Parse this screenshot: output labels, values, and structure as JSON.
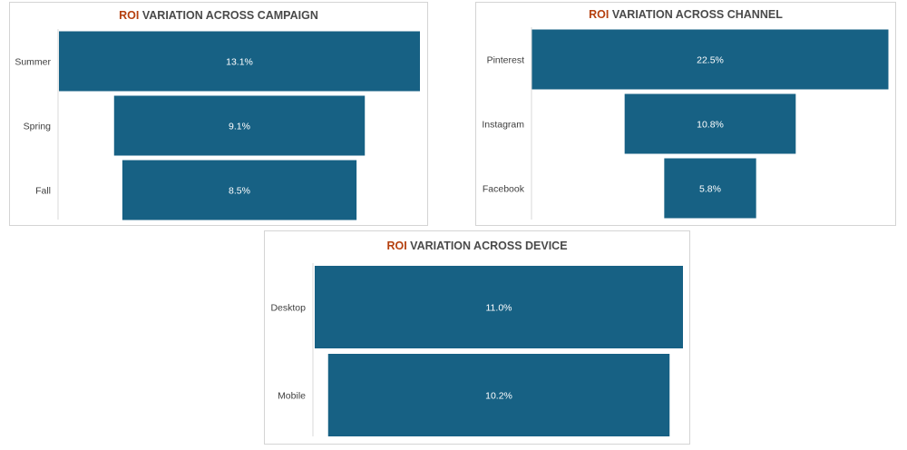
{
  "chart_data": [
    {
      "type": "bar",
      "subtype": "funnel",
      "title_accent": "ROI",
      "title_rest": "VARIATION ACROSS  CAMPAIGN",
      "categories": [
        "Summer",
        "Spring",
        "Fall"
      ],
      "values": [
        13.1,
        9.1,
        8.5
      ],
      "value_labels": [
        "13.1%",
        "9.1%",
        "8.5%"
      ]
    },
    {
      "type": "bar",
      "subtype": "funnel",
      "title_accent": "ROI",
      "title_rest": "VARIATION ACROSS CHANNEL",
      "categories": [
        "Pinterest",
        "Instagram",
        "Facebook"
      ],
      "values": [
        22.5,
        10.8,
        5.8
      ],
      "value_labels": [
        "22.5%",
        "10.8%",
        "5.8%"
      ]
    },
    {
      "type": "bar",
      "subtype": "funnel",
      "title_accent": "ROI",
      "title_rest": "VARIATION ACROSS DEVICE",
      "categories": [
        "Desktop",
        "Mobile"
      ],
      "values": [
        11.0,
        10.2
      ],
      "value_labels": [
        "11.0%",
        "10.2%"
      ]
    }
  ],
  "colors": {
    "bar": "#176184",
    "bar_label": "#ffffff",
    "title_accent": "#b5400f",
    "title_text": "#4a4a4a",
    "category_text": "#404040",
    "axis_line": "#d9d9d9"
  }
}
